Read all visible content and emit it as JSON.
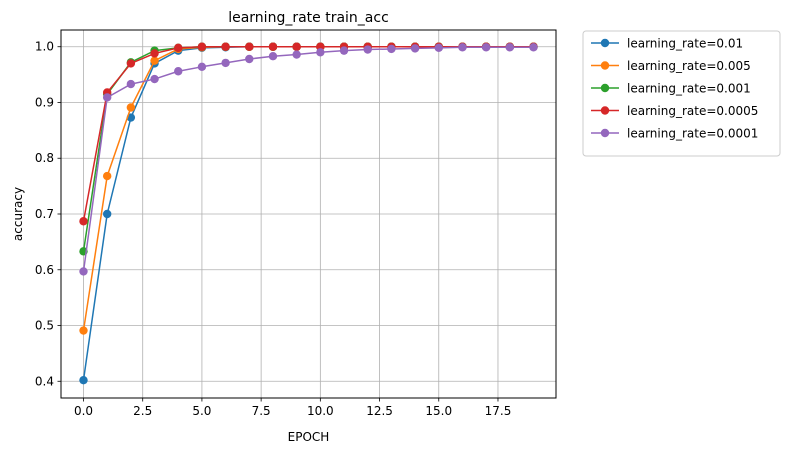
{
  "chart_data": {
    "type": "line",
    "title": "learning_rate train_acc",
    "xlabel": "EPOCH",
    "ylabel": "accuracy",
    "xlim": [
      -0.95,
      19.95
    ],
    "ylim": [
      0.37,
      1.03
    ],
    "xticks": [
      0.0,
      2.5,
      5.0,
      7.5,
      10.0,
      12.5,
      15.0,
      17.5
    ],
    "xtick_labels": [
      "0.0",
      "2.5",
      "5.0",
      "7.5",
      "10.0",
      "12.5",
      "15.0",
      "17.5"
    ],
    "yticks": [
      0.4,
      0.5,
      0.6,
      0.7,
      0.8,
      0.9,
      1.0
    ],
    "ytick_labels": [
      "0.4",
      "0.5",
      "0.6",
      "0.7",
      "0.8",
      "0.9",
      "1.0"
    ],
    "grid": true,
    "legend_position": "outside-upper-right",
    "x": [
      0,
      1,
      2,
      3,
      4,
      5,
      6,
      7,
      8,
      9,
      10,
      11,
      12,
      13,
      14,
      15,
      16,
      17,
      18,
      19
    ],
    "series": [
      {
        "name": "learning_rate=0.01",
        "color": "#1f77b4",
        "values": [
          0.402,
          0.7,
          0.873,
          0.97,
          0.993,
          0.998,
          0.999,
          1.0,
          1.0,
          1.0,
          1.0,
          1.0,
          1.0,
          1.0,
          1.0,
          1.0,
          1.0,
          1.0,
          1.0,
          1.0
        ]
      },
      {
        "name": "learning_rate=0.005",
        "color": "#ff7f0e",
        "values": [
          0.491,
          0.768,
          0.891,
          0.975,
          0.996,
          0.999,
          1.0,
          1.0,
          1.0,
          1.0,
          1.0,
          1.0,
          1.0,
          1.0,
          1.0,
          1.0,
          1.0,
          1.0,
          1.0,
          1.0
        ]
      },
      {
        "name": "learning_rate=0.001",
        "color": "#2ca02c",
        "values": [
          0.633,
          0.915,
          0.972,
          0.993,
          0.998,
          1.0,
          1.0,
          1.0,
          1.0,
          1.0,
          1.0,
          1.0,
          1.0,
          1.0,
          1.0,
          1.0,
          1.0,
          1.0,
          1.0,
          1.0
        ]
      },
      {
        "name": "learning_rate=0.0005",
        "color": "#d62728",
        "values": [
          0.687,
          0.918,
          0.97,
          0.988,
          0.998,
          1.0,
          1.0,
          1.0,
          1.0,
          1.0,
          1.0,
          1.0,
          1.0,
          1.0,
          1.0,
          1.0,
          1.0,
          1.0,
          1.0,
          1.0
        ]
      },
      {
        "name": "learning_rate=0.0001",
        "color": "#9467bd",
        "values": [
          0.597,
          0.909,
          0.933,
          0.942,
          0.956,
          0.964,
          0.971,
          0.978,
          0.983,
          0.986,
          0.99,
          0.993,
          0.995,
          0.996,
          0.997,
          0.998,
          0.999,
          0.999,
          0.999,
          0.999
        ]
      }
    ]
  }
}
